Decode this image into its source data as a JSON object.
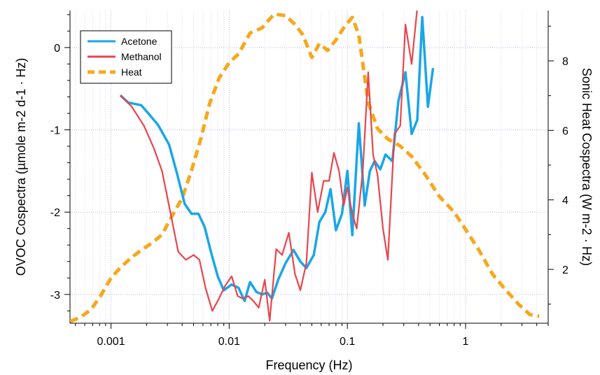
{
  "chart_data": {
    "type": "line",
    "xlabel": "Frequency (Hz)",
    "ylabel_left": "OVOC Cospectra (µmole m-2 d-1 · Hz)",
    "ylabel_right": "Sonic Heat Cospectra (W m-2 · Hz)",
    "x_scale": "log",
    "xlim": [
      0.00045,
      5
    ],
    "ylim_left": [
      -3.35,
      0.45
    ],
    "ylim_right": [
      0.45,
      9.45
    ],
    "x_ticks": [
      {
        "value": 0.001,
        "label": "0.001"
      },
      {
        "value": 0.01,
        "label": "0.01"
      },
      {
        "value": 0.1,
        "label": "0.1"
      },
      {
        "value": 1,
        "label": "1"
      }
    ],
    "y_left_ticks": [
      {
        "value": 0,
        "label": "0"
      },
      {
        "value": -1,
        "label": "-1"
      },
      {
        "value": -2,
        "label": "-2"
      },
      {
        "value": -3,
        "label": "-3"
      }
    ],
    "y_right_ticks": [
      {
        "value": 2,
        "label": "2"
      },
      {
        "value": 4,
        "label": "4"
      },
      {
        "value": 6,
        "label": "6"
      },
      {
        "value": 8,
        "label": "8"
      }
    ],
    "grid": true,
    "legend_position": "top-left",
    "series": [
      {
        "name": "Acetone",
        "axis": "left",
        "color": "#1aa6e8",
        "style": "solid",
        "x": [
          0.0012,
          0.0014,
          0.0018,
          0.0021,
          0.0025,
          0.0031,
          0.0036,
          0.0042,
          0.0048,
          0.0055,
          0.0062,
          0.007,
          0.008,
          0.009,
          0.0105,
          0.012,
          0.0135,
          0.015,
          0.017,
          0.019,
          0.021,
          0.023,
          0.026,
          0.03,
          0.035,
          0.04,
          0.045,
          0.052,
          0.058,
          0.065,
          0.072,
          0.08,
          0.09,
          0.1,
          0.11,
          0.125,
          0.14,
          0.155,
          0.17,
          0.19,
          0.21,
          0.24,
          0.27,
          0.31,
          0.35,
          0.39,
          0.43,
          0.48,
          0.53,
          0.6,
          0.67,
          0.75,
          0.82,
          0.9,
          1.0
        ],
        "y": [
          -0.58,
          -0.67,
          -0.7,
          -0.81,
          -0.94,
          -1.18,
          -1.52,
          -1.9,
          -2.02,
          -2.02,
          -2.18,
          -2.48,
          -2.78,
          -2.95,
          -2.88,
          -2.92,
          -3.08,
          -2.85,
          -2.97,
          -3.0,
          -2.98,
          -3.05,
          -2.82,
          -2.62,
          -2.46,
          -2.6,
          -2.68,
          -2.52,
          -2.12,
          -2.0,
          -1.72,
          -2.22,
          -2.02,
          -1.5,
          -2.28,
          -0.92,
          -1.92,
          -1.5,
          -1.38,
          -1.48,
          -1.3,
          -1.38,
          -0.65,
          -0.3,
          -1.05,
          -0.88,
          0.37,
          -0.72,
          -0.25,
          null,
          null,
          null,
          null,
          null,
          null
        ]
      },
      {
        "name": "Methanol",
        "axis": "left",
        "color": "#e8454b",
        "style": "solid",
        "x": [
          0.0012,
          0.0015,
          0.0019,
          0.0023,
          0.0027,
          0.0032,
          0.0037,
          0.0043,
          0.005,
          0.0056,
          0.0063,
          0.0072,
          0.0082,
          0.0092,
          0.0105,
          0.0118,
          0.013,
          0.0145,
          0.016,
          0.0178,
          0.02,
          0.022,
          0.025,
          0.028,
          0.032,
          0.036,
          0.04,
          0.045,
          0.05,
          0.056,
          0.063,
          0.07,
          0.077,
          0.085,
          0.093,
          0.1,
          0.11,
          0.12,
          0.135,
          0.15,
          0.165,
          0.18,
          0.2,
          0.22,
          0.25,
          0.28,
          0.31,
          0.35,
          0.39,
          0.43,
          0.48,
          0.53,
          0.58,
          0.65,
          0.72,
          0.78,
          0.85,
          0.92,
          1.0
        ],
        "y": [
          -0.58,
          -0.72,
          -0.95,
          -1.22,
          -1.5,
          -2.02,
          -2.48,
          -2.58,
          -2.52,
          -2.58,
          -2.92,
          -3.2,
          -3.05,
          -2.9,
          -2.78,
          -3.02,
          -3.05,
          -3.02,
          -3.08,
          -3.16,
          -2.82,
          -3.32,
          -2.45,
          -2.52,
          -2.25,
          -2.75,
          -2.95,
          -2.62,
          -1.52,
          -2.0,
          -1.62,
          -1.62,
          -1.28,
          -1.5,
          -1.92,
          -1.7,
          -2.02,
          -2.2,
          -1.5,
          -0.3,
          -1.3,
          -1.55,
          -2.2,
          -2.58,
          -1.05,
          -0.95,
          0.28,
          -0.2,
          0.48,
          null,
          null,
          null,
          null,
          null,
          null,
          null,
          null,
          null,
          null
        ]
      },
      {
        "name": "Heat",
        "axis": "right",
        "color": "#f6a81c",
        "style": "dashed",
        "x": [
          0.00045,
          0.00055,
          0.00068,
          0.00082,
          0.001,
          0.0012,
          0.0015,
          0.0018,
          0.0022,
          0.0027,
          0.0033,
          0.004,
          0.0048,
          0.0058,
          0.0068,
          0.0082,
          0.01,
          0.012,
          0.015,
          0.019,
          0.024,
          0.03,
          0.036,
          0.042,
          0.05,
          0.058,
          0.068,
          0.08,
          0.095,
          0.11,
          0.125,
          0.15,
          0.18,
          0.22,
          0.28,
          0.35,
          0.45,
          0.6,
          0.8,
          1.0,
          1.3,
          1.7,
          2.2,
          2.8,
          3.5,
          4.2
        ],
        "y": [
          0.5,
          0.62,
          0.85,
          1.25,
          1.75,
          2.05,
          2.35,
          2.55,
          2.75,
          3.0,
          3.55,
          4.05,
          4.85,
          5.8,
          6.75,
          7.5,
          7.95,
          8.2,
          8.8,
          8.95,
          9.35,
          9.3,
          9.05,
          8.75,
          8.1,
          8.5,
          8.3,
          8.6,
          9.0,
          9.25,
          8.75,
          6.8,
          6.05,
          5.75,
          5.55,
          5.25,
          4.75,
          4.1,
          3.65,
          3.15,
          2.55,
          1.85,
          1.4,
          1.0,
          0.7,
          0.65
        ]
      }
    ]
  }
}
